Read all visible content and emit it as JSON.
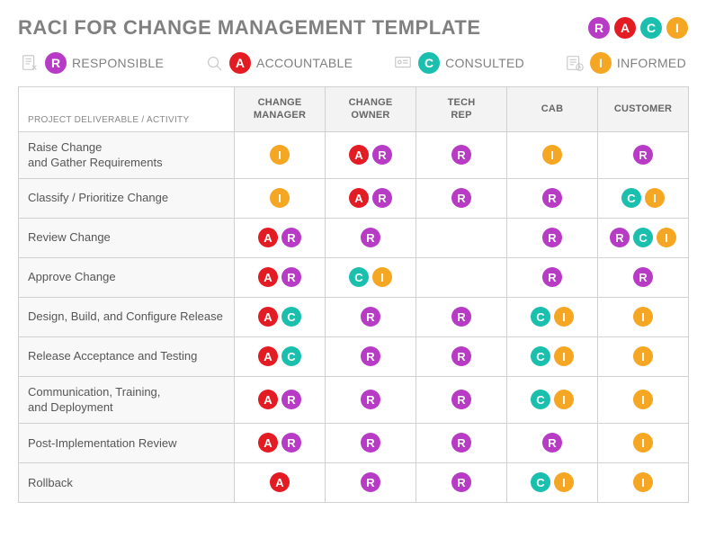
{
  "title": "RACI FOR CHANGE MANAGEMENT TEMPLATE",
  "colors": {
    "R": "#b83bc6",
    "A": "#e31b23",
    "C": "#1bbfae",
    "I": "#f5a623",
    "title": "#808080",
    "header_bg": "#f3f3f3",
    "activity_bg": "#f8f8f8",
    "border": "#d0d0d0"
  },
  "legend": [
    {
      "code": "R",
      "label": "RESPONSIBLE"
    },
    {
      "code": "A",
      "label": "ACCOUNTABLE"
    },
    {
      "code": "C",
      "label": "CONSULTED"
    },
    {
      "code": "I",
      "label": "INFORMED"
    }
  ],
  "corner_label": "PROJECT DELIVERABLE / ACTIVITY",
  "columns": [
    "CHANGE MANAGER",
    "CHANGE OWNER",
    "TECH REP",
    "CAB",
    "CUSTOMER"
  ],
  "rows": [
    {
      "activity": "Raise Change\nand Gather Requirements",
      "cells": [
        [
          "I"
        ],
        [
          "A",
          "R"
        ],
        [
          "R"
        ],
        [
          "I"
        ],
        [
          "R"
        ]
      ]
    },
    {
      "activity": "Classify / Prioritize Change",
      "cells": [
        [
          "I"
        ],
        [
          "A",
          "R"
        ],
        [
          "R"
        ],
        [
          "R"
        ],
        [
          "C",
          "I"
        ]
      ]
    },
    {
      "activity": "Review Change",
      "cells": [
        [
          "A",
          "R"
        ],
        [
          "R"
        ],
        [],
        [
          "R"
        ],
        [
          "R",
          "C",
          "I"
        ]
      ]
    },
    {
      "activity": "Approve Change",
      "cells": [
        [
          "A",
          "R"
        ],
        [
          "C",
          "I"
        ],
        [],
        [
          "R"
        ],
        [
          "R"
        ]
      ]
    },
    {
      "activity": "Design, Build, and Configure Release",
      "cells": [
        [
          "A",
          "C"
        ],
        [
          "R"
        ],
        [
          "R"
        ],
        [
          "C",
          "I"
        ],
        [
          "I"
        ]
      ]
    },
    {
      "activity": "Release Acceptance and Testing",
      "cells": [
        [
          "A",
          "C"
        ],
        [
          "R"
        ],
        [
          "R"
        ],
        [
          "C",
          "I"
        ],
        [
          "I"
        ]
      ]
    },
    {
      "activity": "Communication, Training,\nand Deployment",
      "cells": [
        [
          "A",
          "R"
        ],
        [
          "R"
        ],
        [
          "R"
        ],
        [
          "C",
          "I"
        ],
        [
          "I"
        ]
      ]
    },
    {
      "activity": "Post-Implementation Review",
      "cells": [
        [
          "A",
          "R"
        ],
        [
          "R"
        ],
        [
          "R"
        ],
        [
          "R"
        ],
        [
          "I"
        ]
      ]
    },
    {
      "activity": "Rollback",
      "cells": [
        [
          "A"
        ],
        [
          "R"
        ],
        [
          "R"
        ],
        [
          "C",
          "I"
        ],
        [
          "I"
        ]
      ]
    }
  ]
}
